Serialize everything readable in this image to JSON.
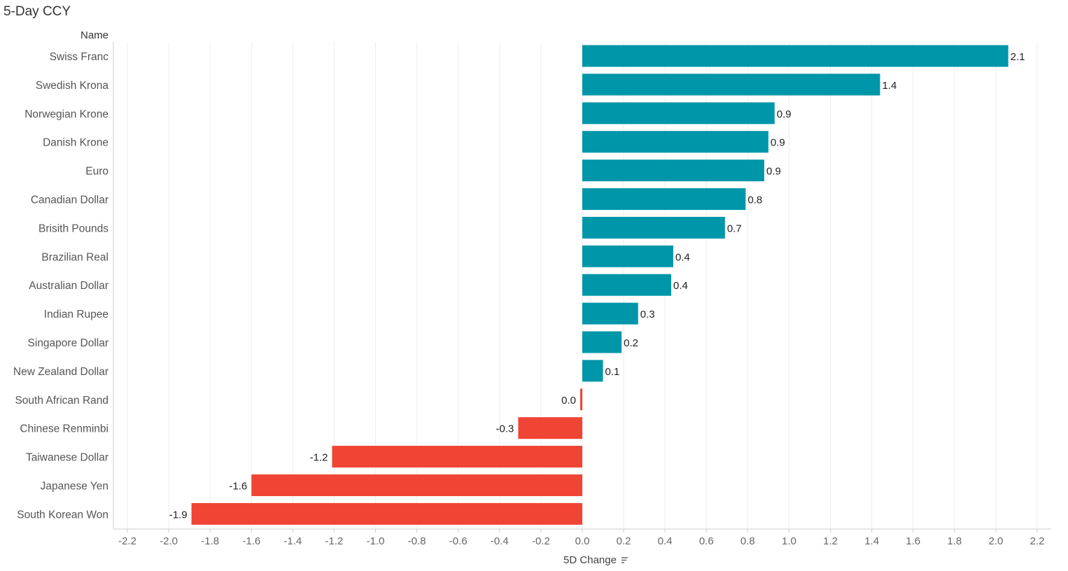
{
  "title": "5-Day CCY",
  "colors": {
    "positive": "#0096a9",
    "negative": "#f04434",
    "grid": "#eeeeee",
    "axis": "#cccccc"
  },
  "chart_data": {
    "type": "bar",
    "orientation": "horizontal",
    "row_header": "Name",
    "xlabel": "5D Change",
    "xlim": [
      -2.2,
      2.2
    ],
    "ticks": [
      "-2.2",
      "-2.0",
      "-1.8",
      "-1.6",
      "-1.4",
      "-1.2",
      "-1.0",
      "-0.8",
      "-0.6",
      "-0.4",
      "-0.2",
      "0.0",
      "0.2",
      "0.4",
      "0.6",
      "0.8",
      "1.0",
      "1.2",
      "1.4",
      "1.6",
      "1.8",
      "2.0",
      "2.2"
    ],
    "grid": true,
    "sorted": "descending",
    "categories": [
      "Swiss Franc",
      "Swedish Krona",
      "Norwegian Krone",
      "Danish Krone",
      "Euro",
      "Canadian Dollar",
      "Brisith Pounds",
      "Brazilian Real",
      "Australian Dollar",
      "Indian Rupee",
      "Singapore Dollar",
      "New Zealand Dollar",
      "South African Rand",
      "Chinese Renminbi",
      "Taiwanese Dollar",
      "Japanese Yen",
      "South Korean Won"
    ],
    "values": [
      2.06,
      1.44,
      0.93,
      0.9,
      0.88,
      0.79,
      0.69,
      0.44,
      0.43,
      0.27,
      0.19,
      0.1,
      -0.01,
      -0.31,
      -1.21,
      -1.6,
      -1.89
    ],
    "labels": [
      "2.1",
      "1.4",
      "0.9",
      "0.9",
      "0.9",
      "0.8",
      "0.7",
      "0.4",
      "0.4",
      "0.3",
      "0.2",
      "0.1",
      "0.0",
      "-0.3",
      "-1.2",
      "-1.6",
      "-1.9"
    ]
  }
}
